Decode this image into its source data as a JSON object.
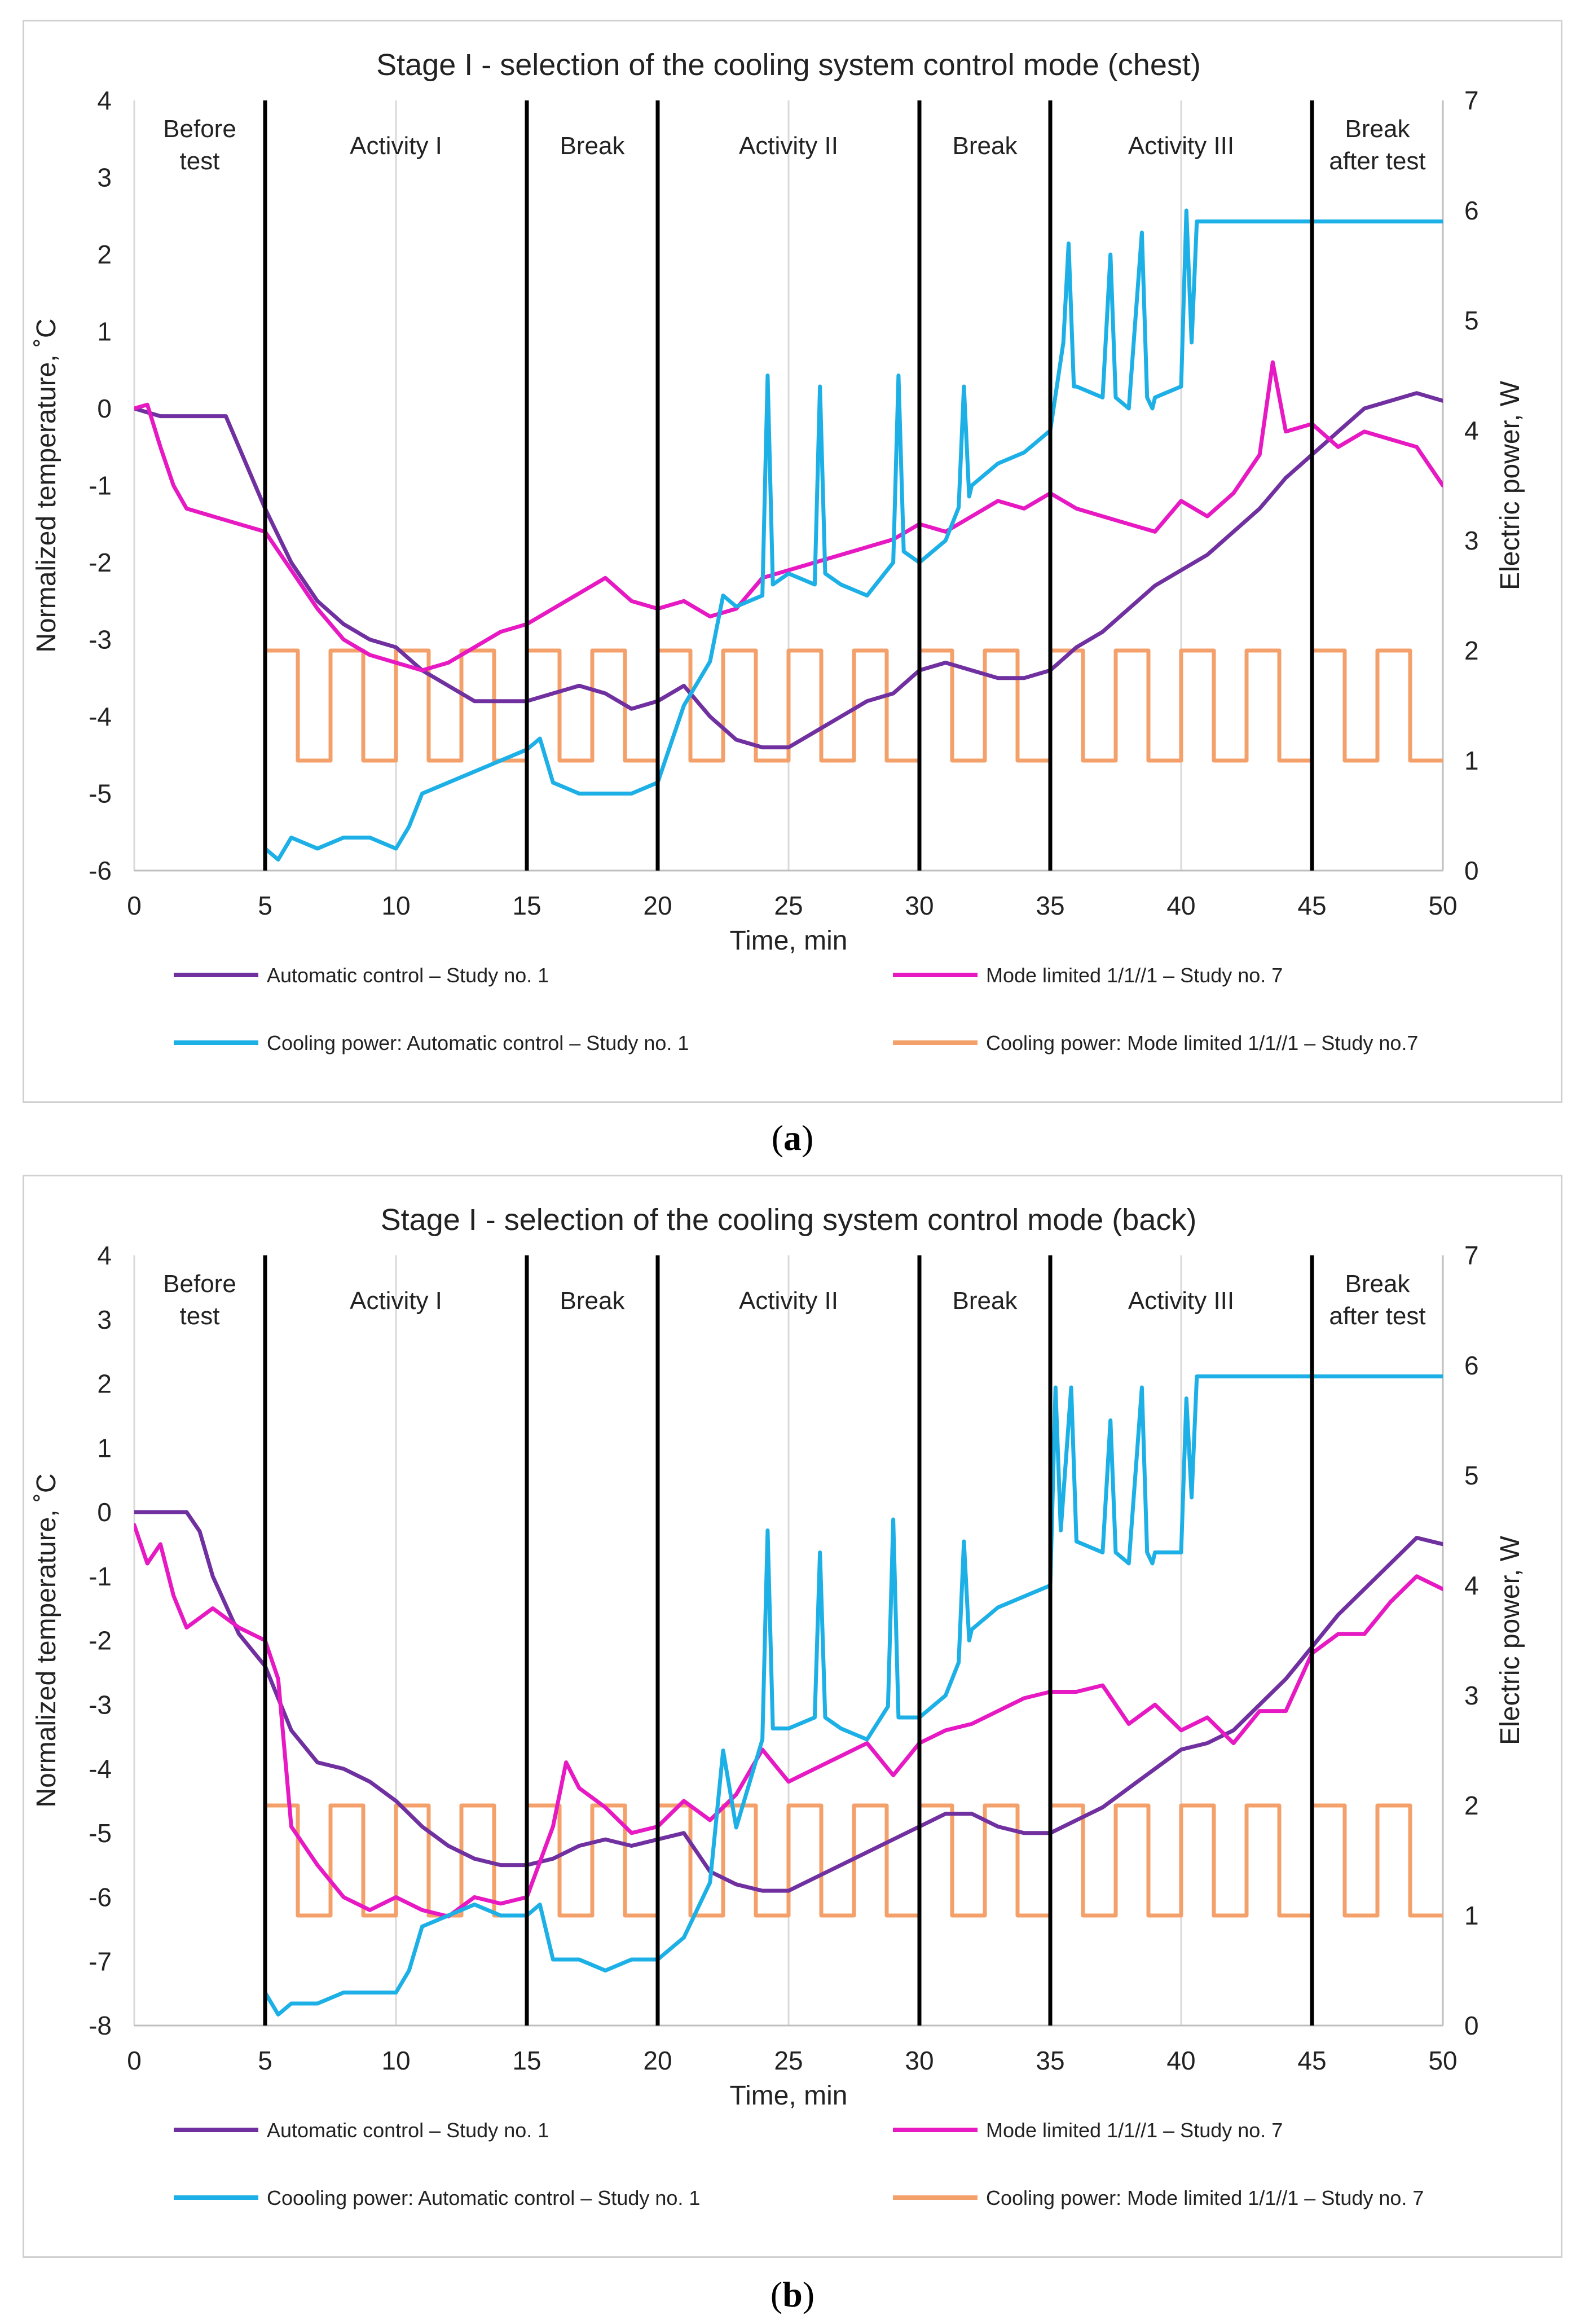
{
  "panels": [
    {
      "id": "a",
      "caption_letter": "a",
      "chart_data": {
        "type": "line",
        "title": "Stage I - selection of the cooling system control mode (chest)",
        "xlabel": "Time, min",
        "ylabel": "Normalized temperature, ˚C",
        "y2label": "Electric power, W",
        "xlim": [
          0,
          50
        ],
        "ylim": [
          -6,
          4
        ],
        "y2lim": [
          0,
          7
        ],
        "xticks": [
          0,
          5,
          10,
          15,
          20,
          25,
          30,
          35,
          40,
          45,
          50
        ],
        "yticks": [
          -6,
          -5,
          -4,
          -3,
          -2,
          -1,
          0,
          1,
          2,
          3,
          4
        ],
        "y2ticks": [
          0,
          1,
          2,
          3,
          4,
          5,
          6,
          7
        ],
        "phase_boundaries": [
          5,
          15,
          20,
          30,
          35,
          45
        ],
        "phases": [
          {
            "label": "Before test",
            "x": 2.5
          },
          {
            "label": "Activity I",
            "x": 10
          },
          {
            "label": "Break",
            "x": 17.5
          },
          {
            "label": "Activity II",
            "x": 25
          },
          {
            "label": "Break",
            "x": 32.5
          },
          {
            "label": "Activity III",
            "x": 40
          },
          {
            "label": "Break after test",
            "x": 47.5
          }
        ],
        "legend": [
          {
            "label": "Automatic control – Study no. 1",
            "color": "#7030A0"
          },
          {
            "label": "Mode limited 1/1//1 – Study no. 7",
            "color": "#E619C3"
          },
          {
            "label": "Cooling power: Automatic control – Study no. 1",
            "color": "#1CB0E6"
          },
          {
            "label": "Cooling power: Mode limited 1/1//1 – Study no.7",
            "color": "#F4A06B"
          }
        ],
        "series": [
          {
            "name": "Automatic control – Study no. 1",
            "axis": "left",
            "color": "#7030A0",
            "x": [
              0,
              1,
              2,
              3,
              3.5,
              4,
              5,
              6,
              7,
              8,
              9,
              10,
              11,
              12,
              13,
              14,
              15,
              16,
              17,
              18,
              19,
              20,
              21,
              22,
              23,
              24,
              25,
              26,
              27,
              28,
              29,
              30,
              31,
              32,
              33,
              34,
              35,
              36,
              37,
              38,
              39,
              40,
              41,
              42,
              43,
              44,
              45,
              46,
              47,
              48,
              49,
              50
            ],
            "y": [
              0,
              -0.1,
              -0.1,
              -0.1,
              -0.1,
              -0.5,
              -1.3,
              -2.0,
              -2.5,
              -2.8,
              -3.0,
              -3.1,
              -3.4,
              -3.6,
              -3.8,
              -3.8,
              -3.8,
              -3.7,
              -3.6,
              -3.7,
              -3.9,
              -3.8,
              -3.6,
              -4.0,
              -4.3,
              -4.4,
              -4.4,
              -4.2,
              -4.0,
              -3.8,
              -3.7,
              -3.4,
              -3.3,
              -3.4,
              -3.5,
              -3.5,
              -3.4,
              -3.1,
              -2.9,
              -2.6,
              -2.3,
              -2.1,
              -1.9,
              -1.6,
              -1.3,
              -0.9,
              -0.6,
              -0.3,
              0.0,
              0.1,
              0.2,
              0.1
            ]
          },
          {
            "name": "Mode limited 1/1//1 – Study no. 7",
            "axis": "left",
            "color": "#E619C3",
            "x": [
              0,
              0.5,
              1,
              1.5,
              2,
              3,
              4,
              5,
              6,
              7,
              8,
              9,
              10,
              11,
              12,
              13,
              14,
              15,
              16,
              17,
              18,
              19,
              20,
              21,
              22,
              23,
              24,
              25,
              26,
              27,
              28,
              29,
              30,
              31,
              32,
              33,
              34,
              35,
              36,
              37,
              38,
              39,
              40,
              41,
              42,
              43,
              43.5,
              44,
              45,
              46,
              47,
              48,
              49,
              50
            ],
            "y": [
              0,
              0.05,
              -0.5,
              -1.0,
              -1.3,
              -1.4,
              -1.5,
              -1.6,
              -2.1,
              -2.6,
              -3.0,
              -3.2,
              -3.3,
              -3.4,
              -3.3,
              -3.1,
              -2.9,
              -2.8,
              -2.6,
              -2.4,
              -2.2,
              -2.5,
              -2.6,
              -2.5,
              -2.7,
              -2.6,
              -2.2,
              -2.1,
              -2.0,
              -1.9,
              -1.8,
              -1.7,
              -1.5,
              -1.6,
              -1.4,
              -1.2,
              -1.3,
              -1.1,
              -1.3,
              -1.4,
              -1.5,
              -1.6,
              -1.2,
              -1.4,
              -1.1,
              -0.6,
              0.6,
              -0.3,
              -0.2,
              -0.5,
              -0.3,
              -0.4,
              -0.5,
              -1.0
            ]
          },
          {
            "name": "Cooling power: Automatic control – Study no. 1",
            "axis": "right",
            "color": "#1CB0E6",
            "x": [
              5,
              5.5,
              6,
              7,
              8,
              9,
              10,
              10.5,
              11,
              12,
              13,
              14,
              15,
              15.5,
              16,
              17,
              18,
              19,
              20,
              21,
              22,
              22.5,
              23,
              24,
              24.2,
              24.4,
              25,
              26,
              26.2,
              26.4,
              27,
              28,
              29,
              29.2,
              29.4,
              30,
              31,
              31.5,
              31.7,
              31.9,
              32,
              33,
              34,
              35,
              35.5,
              35.7,
              35.9,
              36,
              37,
              37.3,
              37.5,
              38,
              38.5,
              38.7,
              38.9,
              39,
              40,
              40.2,
              40.4,
              40.6,
              41,
              42,
              43,
              44,
              45,
              46,
              47,
              48,
              49,
              50
            ],
            "y": [
              0.2,
              0.1,
              0.3,
              0.2,
              0.3,
              0.3,
              0.2,
              0.4,
              0.7,
              0.8,
              0.9,
              1.0,
              1.1,
              1.2,
              0.8,
              0.7,
              0.7,
              0.7,
              0.8,
              1.5,
              1.9,
              2.5,
              2.4,
              2.5,
              4.5,
              2.6,
              2.7,
              2.6,
              4.4,
              2.7,
              2.6,
              2.5,
              2.8,
              4.5,
              2.9,
              2.8,
              3.0,
              3.3,
              4.4,
              3.4,
              3.5,
              3.7,
              3.8,
              4.0,
              4.8,
              5.7,
              4.4,
              4.4,
              4.3,
              5.6,
              4.3,
              4.2,
              5.8,
              4.3,
              4.2,
              4.3,
              4.4,
              6.0,
              4.8,
              5.9,
              5.9,
              5.9,
              5.9,
              5.9,
              5.9,
              5.9,
              5.9,
              5.9,
              5.9,
              5.9
            ]
          },
          {
            "name": "Cooling power: Mode limited 1/1//1 – Study no.7",
            "axis": "right",
            "color": "#F4A06B",
            "square": {
              "start": 5,
              "end": 50,
              "period": 2.5,
              "high": 2,
              "low": 1
            }
          }
        ]
      }
    },
    {
      "id": "b",
      "caption_letter": "b",
      "chart_data": {
        "type": "line",
        "title": "Stage I - selection of the cooling system control mode (back)",
        "xlabel": "Time, min",
        "ylabel": "Normalized temperature, ˚C",
        "y2label": "Electric power, W",
        "xlim": [
          0,
          50
        ],
        "ylim": [
          -8,
          4
        ],
        "y2lim": [
          0,
          7
        ],
        "xticks": [
          0,
          5,
          10,
          15,
          20,
          25,
          30,
          35,
          40,
          45,
          50
        ],
        "yticks": [
          -8,
          -7,
          -6,
          -5,
          -4,
          -3,
          -2,
          -1,
          0,
          1,
          2,
          3,
          4
        ],
        "y2ticks": [
          0,
          1,
          2,
          3,
          4,
          5,
          6,
          7
        ],
        "phase_boundaries": [
          5,
          15,
          20,
          30,
          35,
          45
        ],
        "phases": [
          {
            "label": "Before test",
            "x": 2.5
          },
          {
            "label": "Activity I",
            "x": 10
          },
          {
            "label": "Break",
            "x": 17.5
          },
          {
            "label": "Activity II",
            "x": 25
          },
          {
            "label": "Break",
            "x": 32.5
          },
          {
            "label": "Activity III",
            "x": 40
          },
          {
            "label": "Break after test",
            "x": 47.5
          }
        ],
        "legend": [
          {
            "label": "Automatic control – Study no. 1",
            "color": "#7030A0"
          },
          {
            "label": "Mode limited 1/1//1 – Study no. 7",
            "color": "#E619C3"
          },
          {
            "label": "Coooling power: Automatic control – Study no. 1",
            "color": "#1CB0E6"
          },
          {
            "label": "Cooling power: Mode limited 1/1//1 – Study no. 7",
            "color": "#F4A06B"
          }
        ],
        "series": [
          {
            "name": "Automatic control – Study no. 1",
            "axis": "left",
            "color": "#7030A0",
            "x": [
              0,
              1,
              2,
              2.5,
              3,
              4,
              5,
              6,
              7,
              8,
              9,
              10,
              11,
              12,
              13,
              14,
              15,
              16,
              17,
              18,
              19,
              20,
              21,
              22,
              23,
              24,
              25,
              26,
              27,
              28,
              29,
              30,
              31,
              32,
              33,
              34,
              35,
              36,
              37,
              38,
              39,
              40,
              41,
              42,
              43,
              44,
              45,
              46,
              47,
              48,
              49,
              50
            ],
            "y": [
              0,
              0,
              0,
              -0.3,
              -1.0,
              -1.9,
              -2.4,
              -3.4,
              -3.9,
              -4.0,
              -4.2,
              -4.5,
              -4.9,
              -5.2,
              -5.4,
              -5.5,
              -5.5,
              -5.4,
              -5.2,
              -5.1,
              -5.2,
              -5.1,
              -5.0,
              -5.6,
              -5.8,
              -5.9,
              -5.9,
              -5.7,
              -5.5,
              -5.3,
              -5.1,
              -4.9,
              -4.7,
              -4.7,
              -4.9,
              -5.0,
              -5.0,
              -4.8,
              -4.6,
              -4.3,
              -4.0,
              -3.7,
              -3.6,
              -3.4,
              -3.0,
              -2.6,
              -2.1,
              -1.6,
              -1.2,
              -0.8,
              -0.4,
              -0.5
            ]
          },
          {
            "name": "Mode limited 1/1//1 – Study no. 7",
            "axis": "left",
            "color": "#E619C3",
            "x": [
              0,
              0.5,
              1,
              1.5,
              2,
              3,
              4,
              5,
              5.5,
              6,
              7,
              8,
              9,
              10,
              11,
              12,
              13,
              14,
              15,
              16,
              16.5,
              17,
              18,
              19,
              20,
              21,
              22,
              23,
              24,
              25,
              26,
              27,
              28,
              29,
              30,
              31,
              32,
              33,
              34,
              35,
              36,
              37,
              38,
              39,
              40,
              41,
              42,
              43,
              44,
              45,
              46,
              47,
              48,
              49,
              50
            ],
            "y": [
              -0.2,
              -0.8,
              -0.5,
              -1.3,
              -1.8,
              -1.5,
              -1.8,
              -2.0,
              -2.6,
              -4.9,
              -5.5,
              -6.0,
              -6.2,
              -6.0,
              -6.2,
              -6.3,
              -6.0,
              -6.1,
              -6.0,
              -4.9,
              -3.9,
              -4.3,
              -4.6,
              -5.0,
              -4.9,
              -4.5,
              -4.8,
              -4.4,
              -3.7,
              -4.2,
              -4.0,
              -3.8,
              -3.6,
              -4.1,
              -3.6,
              -3.4,
              -3.3,
              -3.1,
              -2.9,
              -2.8,
              -2.8,
              -2.7,
              -3.3,
              -3.0,
              -3.4,
              -3.2,
              -3.6,
              -3.1,
              -3.1,
              -2.2,
              -1.9,
              -1.9,
              -1.4,
              -1.0,
              -1.2
            ]
          },
          {
            "name": "Coooling power: Automatic control – Study no. 1",
            "axis": "right",
            "color": "#1CB0E6",
            "x": [
              5,
              5.5,
              6,
              7,
              8,
              9,
              10,
              10.5,
              11,
              12,
              13,
              14,
              15,
              15.5,
              16,
              17,
              18,
              19,
              20,
              21,
              22,
              22.5,
              23,
              24,
              24.2,
              24.4,
              25,
              26,
              26.2,
              26.4,
              27,
              28,
              28.8,
              29,
              29.2,
              30,
              31,
              31.5,
              31.7,
              31.9,
              32,
              33,
              34,
              35,
              35.2,
              35.4,
              35.8,
              36,
              37,
              37.3,
              37.5,
              38,
              38.5,
              38.7,
              38.9,
              39,
              40,
              40.2,
              40.4,
              40.6,
              41,
              42,
              43,
              44,
              45,
              46,
              47,
              48,
              49,
              50
            ],
            "y": [
              0.3,
              0.1,
              0.2,
              0.2,
              0.3,
              0.3,
              0.3,
              0.5,
              0.9,
              1.0,
              1.1,
              1.0,
              1.0,
              1.1,
              0.6,
              0.6,
              0.5,
              0.6,
              0.6,
              0.8,
              1.3,
              2.5,
              1.8,
              2.6,
              4.5,
              2.7,
              2.7,
              2.8,
              4.3,
              2.8,
              2.7,
              2.6,
              2.9,
              4.6,
              2.8,
              2.8,
              3.0,
              3.3,
              4.4,
              3.5,
              3.6,
              3.8,
              3.9,
              4.0,
              5.8,
              4.5,
              5.8,
              4.4,
              4.3,
              5.5,
              4.3,
              4.2,
              5.8,
              4.3,
              4.2,
              4.3,
              4.3,
              5.7,
              4.8,
              5.9,
              5.9,
              5.9,
              5.9,
              5.9,
              5.9,
              5.9,
              5.9,
              5.9,
              5.9,
              5.9
            ]
          },
          {
            "name": "Cooling power: Mode limited 1/1//1 – Study no. 7",
            "axis": "right",
            "color": "#F4A06B",
            "square": {
              "start": 5,
              "end": 50,
              "period": 2.5,
              "high": 2,
              "low": 1
            }
          }
        ]
      }
    }
  ]
}
